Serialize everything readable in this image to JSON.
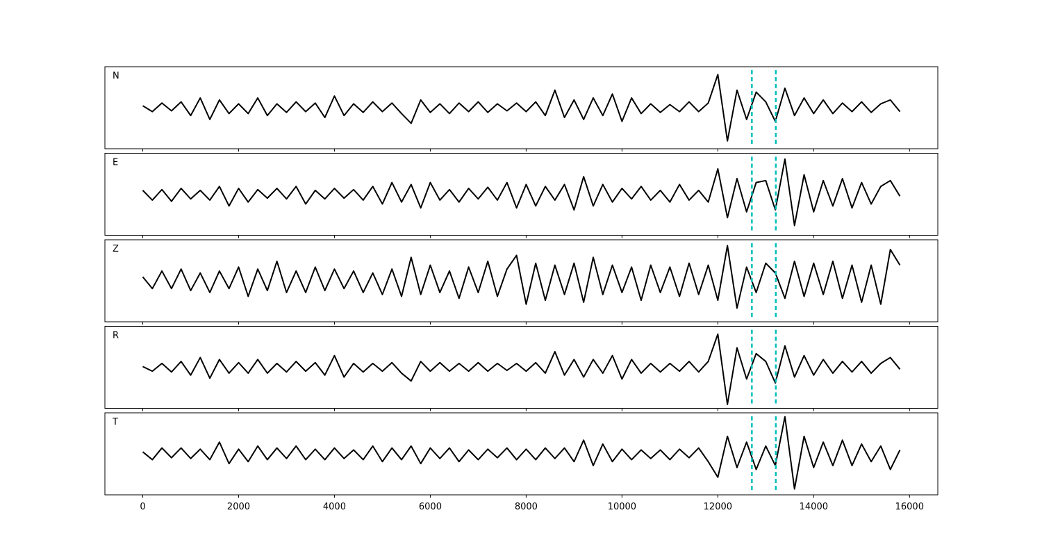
{
  "chart_data": {
    "type": "line",
    "x": [
      0,
      200,
      400,
      600,
      800,
      1000,
      1200,
      1400,
      1600,
      1800,
      2000,
      2200,
      2400,
      2600,
      2800,
      3000,
      3200,
      3400,
      3600,
      3800,
      4000,
      4200,
      4400,
      4600,
      4800,
      5000,
      5200,
      5400,
      5600,
      5800,
      6000,
      6200,
      6400,
      6600,
      6800,
      7000,
      7200,
      7400,
      7600,
      7800,
      8000,
      8200,
      8400,
      8600,
      8800,
      9000,
      9200,
      9400,
      9600,
      9800,
      10000,
      10200,
      10400,
      10600,
      10800,
      11000,
      11200,
      11400,
      11600,
      11800,
      12000,
      12200,
      12400,
      12600,
      12800,
      13000,
      13200,
      13400,
      13600,
      13800,
      14000,
      14200,
      14400,
      14600,
      14800,
      15000,
      15200,
      15400,
      15600,
      15800
    ],
    "xlim": [
      -790,
      16590
    ],
    "xticks": [
      0,
      2000,
      4000,
      6000,
      8000,
      10000,
      12000,
      14000,
      16000
    ],
    "ylim": [
      -1.05,
      1.05
    ],
    "markers": [
      12710,
      13210
    ],
    "marker_color": "#00bfbf",
    "series": [
      {
        "name": "N",
        "color": "#000000",
        "values": [
          0.05,
          -0.1,
          0.12,
          -0.08,
          0.15,
          -0.2,
          0.25,
          -0.3,
          0.2,
          -0.15,
          0.1,
          -0.15,
          0.25,
          -0.2,
          0.1,
          -0.12,
          0.15,
          -0.1,
          0.12,
          -0.25,
          0.3,
          -0.2,
          0.1,
          -0.12,
          0.15,
          -0.1,
          0.12,
          -0.15,
          -0.4,
          0.2,
          -0.12,
          0.1,
          -0.15,
          0.12,
          -0.1,
          0.15,
          -0.12,
          0.1,
          -0.08,
          0.12,
          -0.1,
          0.15,
          -0.2,
          0.45,
          -0.25,
          0.2,
          -0.3,
          0.25,
          -0.2,
          0.35,
          -0.35,
          0.25,
          -0.15,
          0.1,
          -0.12,
          0.08,
          -0.1,
          0.15,
          -0.1,
          0.12,
          0.85,
          -0.85,
          0.45,
          -0.3,
          0.4,
          0.15,
          -0.35,
          0.5,
          -0.2,
          0.25,
          -0.15,
          0.2,
          -0.15,
          0.12,
          -0.1,
          0.15,
          -0.12,
          0.1,
          0.2,
          -0.1
        ]
      },
      {
        "name": "E",
        "color": "#000000",
        "values": [
          0.1,
          -0.15,
          0.12,
          -0.18,
          0.15,
          -0.12,
          0.1,
          -0.15,
          0.2,
          -0.3,
          0.15,
          -0.2,
          0.12,
          -0.1,
          0.15,
          -0.12,
          0.2,
          -0.25,
          0.1,
          -0.12,
          0.15,
          -0.1,
          0.12,
          -0.15,
          0.2,
          -0.25,
          0.3,
          -0.2,
          0.25,
          -0.35,
          0.3,
          -0.15,
          0.12,
          -0.2,
          0.15,
          -0.12,
          0.18,
          -0.15,
          0.3,
          -0.35,
          0.25,
          -0.3,
          0.2,
          -0.15,
          0.25,
          -0.4,
          0.45,
          -0.3,
          0.25,
          -0.2,
          0.15,
          -0.12,
          0.2,
          -0.15,
          0.1,
          -0.2,
          0.25,
          -0.15,
          0.1,
          -0.2,
          0.65,
          -0.6,
          0.4,
          -0.45,
          0.3,
          0.35,
          -0.4,
          0.9,
          -0.8,
          0.5,
          -0.45,
          0.35,
          -0.3,
          0.4,
          -0.35,
          0.3,
          -0.25,
          0.2,
          0.35,
          -0.05
        ]
      },
      {
        "name": "Z",
        "color": "#000000",
        "values": [
          0.1,
          -0.2,
          0.25,
          -0.2,
          0.3,
          -0.25,
          0.2,
          -0.3,
          0.25,
          -0.2,
          0.35,
          -0.4,
          0.3,
          -0.25,
          0.5,
          -0.3,
          0.25,
          -0.3,
          0.35,
          -0.25,
          0.3,
          -0.2,
          0.25,
          -0.3,
          0.2,
          -0.35,
          0.3,
          -0.4,
          0.6,
          -0.35,
          0.4,
          -0.3,
          0.25,
          -0.45,
          0.35,
          -0.3,
          0.5,
          -0.4,
          0.3,
          0.65,
          -0.6,
          0.45,
          -0.5,
          0.4,
          -0.35,
          0.45,
          -0.55,
          0.6,
          -0.35,
          0.4,
          -0.3,
          0.35,
          -0.5,
          0.4,
          -0.3,
          0.35,
          -0.4,
          0.45,
          -0.35,
          0.4,
          -0.5,
          0.9,
          -0.7,
          0.35,
          -0.3,
          0.45,
          0.2,
          -0.45,
          0.5,
          -0.4,
          0.45,
          -0.35,
          0.5,
          -0.45,
          0.4,
          -0.55,
          0.4,
          -0.6,
          0.8,
          0.4
        ]
      },
      {
        "name": "R",
        "color": "#000000",
        "values": [
          0.02,
          -0.1,
          0.1,
          -0.12,
          0.15,
          -0.2,
          0.25,
          -0.28,
          0.2,
          -0.15,
          0.12,
          -0.15,
          0.2,
          -0.15,
          0.1,
          -0.12,
          0.15,
          -0.1,
          0.12,
          -0.2,
          0.3,
          -0.25,
          0.1,
          -0.12,
          0.1,
          -0.1,
          0.12,
          -0.15,
          -0.35,
          0.15,
          -0.1,
          0.12,
          -0.1,
          0.1,
          -0.1,
          0.12,
          -0.1,
          0.1,
          -0.08,
          0.1,
          -0.1,
          0.12,
          -0.15,
          0.4,
          -0.2,
          0.2,
          -0.25,
          0.2,
          -0.15,
          0.3,
          -0.3,
          0.2,
          -0.15,
          0.1,
          -0.12,
          0.1,
          -0.1,
          0.15,
          -0.12,
          0.15,
          0.85,
          -0.95,
          0.5,
          -0.3,
          0.35,
          0.15,
          -0.4,
          0.55,
          -0.25,
          0.3,
          -0.2,
          0.2,
          -0.15,
          0.15,
          -0.12,
          0.15,
          -0.15,
          0.1,
          0.25,
          -0.05
        ]
      },
      {
        "name": "T",
        "color": "#000000",
        "values": [
          0.05,
          -0.15,
          0.15,
          -0.1,
          0.15,
          -0.12,
          0.12,
          -0.15,
          0.3,
          -0.25,
          0.12,
          -0.2,
          0.2,
          -0.15,
          0.15,
          -0.12,
          0.2,
          -0.15,
          0.12,
          -0.15,
          0.15,
          -0.12,
          0.1,
          -0.15,
          0.2,
          -0.2,
          0.15,
          -0.15,
          0.2,
          -0.25,
          0.15,
          -0.12,
          0.15,
          -0.2,
          0.1,
          -0.15,
          0.12,
          -0.1,
          0.15,
          -0.15,
          0.12,
          -0.15,
          0.15,
          -0.12,
          0.15,
          -0.2,
          0.35,
          -0.3,
          0.25,
          -0.2,
          0.12,
          -0.15,
          0.1,
          -0.12,
          0.1,
          -0.15,
          0.12,
          -0.1,
          0.15,
          -0.2,
          -0.6,
          0.45,
          -0.35,
          0.3,
          -0.4,
          0.2,
          -0.3,
          0.95,
          -0.9,
          0.45,
          -0.35,
          0.3,
          -0.3,
          0.35,
          -0.3,
          0.25,
          -0.2,
          0.2,
          -0.4,
          0.1
        ]
      }
    ]
  }
}
